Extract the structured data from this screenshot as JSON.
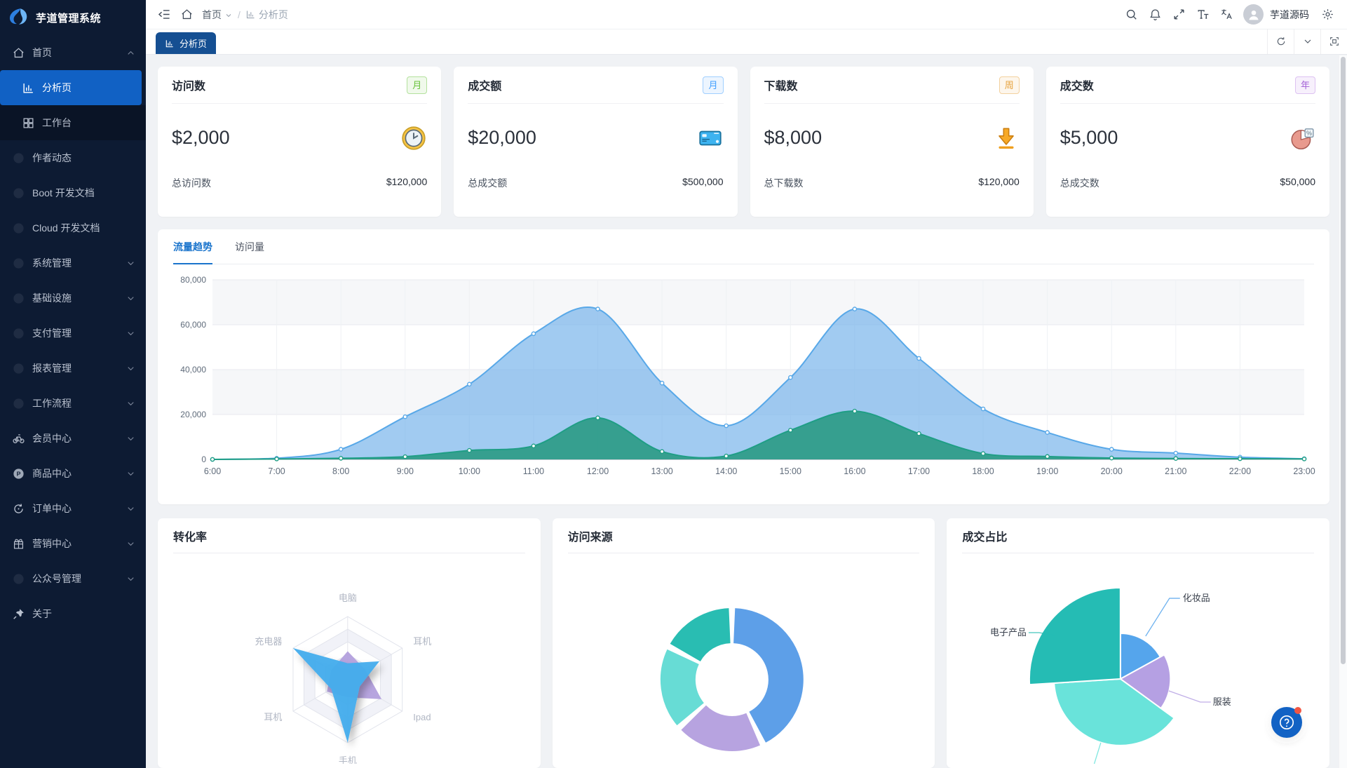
{
  "app": {
    "primary_color": "#1262c4",
    "sidebar_bg": "#0d1b33",
    "active_menu_bg": "#1161c4",
    "tab_bg": "#154f92"
  },
  "sidebar": {
    "logo_title": "芋道管理系统",
    "items": [
      {
        "key": "home",
        "label": "首页",
        "icon": "home",
        "arrow": "up",
        "root": true
      },
      {
        "key": "analysis",
        "label": "分析页",
        "icon": "chart",
        "sub": true,
        "active": true
      },
      {
        "key": "workplace",
        "label": "工作台",
        "icon": "grid",
        "sub": true
      },
      {
        "key": "author",
        "label": "作者动态",
        "icon": "dot"
      },
      {
        "key": "boot-doc",
        "label": "Boot 开发文档",
        "icon": "dot"
      },
      {
        "key": "cloud-doc",
        "label": "Cloud 开发文档",
        "icon": "dot"
      },
      {
        "key": "system",
        "label": "系统管理",
        "icon": "dot",
        "arrow": "down"
      },
      {
        "key": "infra",
        "label": "基础设施",
        "icon": "dot",
        "arrow": "down"
      },
      {
        "key": "pay",
        "label": "支付管理",
        "icon": "dot",
        "arrow": "down"
      },
      {
        "key": "report",
        "label": "报表管理",
        "icon": "dot",
        "arrow": "down"
      },
      {
        "key": "workflow",
        "label": "工作流程",
        "icon": "dot",
        "arrow": "down"
      },
      {
        "key": "member",
        "label": "会员中心",
        "icon": "bike",
        "arrow": "down"
      },
      {
        "key": "product",
        "label": "商品中心",
        "icon": "product",
        "arrow": "down"
      },
      {
        "key": "order",
        "label": "订单中心",
        "icon": "order",
        "arrow": "down"
      },
      {
        "key": "marketing",
        "label": "营销中心",
        "icon": "gift",
        "arrow": "down"
      },
      {
        "key": "mp",
        "label": "公众号管理",
        "icon": "dot",
        "arrow": "down"
      },
      {
        "key": "about",
        "label": "关于",
        "icon": "pin"
      }
    ]
  },
  "header": {
    "breadcrumb": [
      {
        "label": "首页"
      },
      {
        "label": "分析页"
      }
    ],
    "user_name": "芋道源码"
  },
  "tabbar": {
    "active_tab": "分析页"
  },
  "stat_cards": [
    {
      "title": "访问数",
      "badge": "月",
      "badge_color": "green",
      "value": "$2,000",
      "icon": "clock",
      "footer_label": "总访问数",
      "footer_value": "$120,000"
    },
    {
      "title": "成交额",
      "badge": "月",
      "badge_color": "blue",
      "value": "$20,000",
      "icon": "card",
      "footer_label": "总成交额",
      "footer_value": "$500,000"
    },
    {
      "title": "下载数",
      "badge": "周",
      "badge_color": "orange",
      "value": "$8,000",
      "icon": "download",
      "footer_label": "总下载数",
      "footer_value": "$120,000"
    },
    {
      "title": "成交数",
      "badge": "年",
      "badge_color": "purple",
      "value": "$5,000",
      "icon": "pie",
      "footer_label": "总成交数",
      "footer_value": "$50,000"
    }
  ],
  "trend_section": {
    "tabs": [
      "流量趋势",
      "访问量"
    ],
    "active_tab": "流量趋势"
  },
  "bottom_cards": [
    {
      "title": "转化率"
    },
    {
      "title": "访问来源"
    },
    {
      "title": "成交占比"
    }
  ],
  "chart_data": [
    {
      "id": "traffic-trend",
      "type": "area",
      "title": "流量趋势",
      "x": [
        "6:00",
        "7:00",
        "8:00",
        "9:00",
        "10:00",
        "11:00",
        "12:00",
        "13:00",
        "14:00",
        "15:00",
        "16:00",
        "17:00",
        "18:00",
        "19:00",
        "20:00",
        "21:00",
        "22:00",
        "23:00"
      ],
      "ylim": [
        0,
        80000
      ],
      "ytick_labels": [
        "0",
        "20,000",
        "40,000",
        "60,000",
        "80,000"
      ],
      "grid": true,
      "series": [
        {
          "name": "series-blue",
          "color": "#58a8e8",
          "fill": "rgba(113,176,233,0.66)",
          "values": [
            0,
            500,
            4500,
            19000,
            33500,
            56000,
            67000,
            34000,
            15000,
            36500,
            67000,
            45000,
            22500,
            12000,
            4500,
            2800,
            1000,
            300
          ]
        },
        {
          "name": "series-green",
          "color": "#1f9e85",
          "fill": "rgba(35,152,126,0.85)",
          "values": [
            0,
            200,
            500,
            1200,
            4000,
            6000,
            18500,
            3500,
            1500,
            13000,
            21500,
            11500,
            2600,
            1300,
            600,
            400,
            300,
            200
          ]
        }
      ]
    },
    {
      "id": "conversion-radar",
      "type": "radar",
      "title": "转化率",
      "axes": [
        "电脑",
        "耳机",
        "Ipad",
        "手机",
        "耳机",
        "充电器"
      ],
      "max": 100,
      "series": [
        {
          "name": "radar-purple",
          "color": "#b3a0dd",
          "values": [
            45,
            32,
            62,
            28,
            38,
            30
          ]
        },
        {
          "name": "radar-blue",
          "color": "#45aded",
          "values": [
            26,
            58,
            22,
            100,
            30,
            100
          ]
        }
      ]
    },
    {
      "id": "visit-source",
      "type": "donut",
      "title": "访问来源",
      "slices": [
        {
          "name": "slice-blue",
          "value": 42,
          "color": "#5d9fe8"
        },
        {
          "name": "slice-purple",
          "value": 20,
          "color": "#b7a3e0"
        },
        {
          "name": "slice-cyan",
          "value": 19,
          "color": "#67dcd5"
        },
        {
          "name": "slice-teal",
          "value": 17,
          "color": "#29bdb2"
        }
      ]
    },
    {
      "id": "deal-share",
      "type": "rose-pie",
      "title": "成交占比",
      "slices": [
        {
          "label": "化妆品",
          "value": 17,
          "radius_ratio": 0.5,
          "color": "#55a5ec"
        },
        {
          "label": "服装",
          "value": 18,
          "radius_ratio": 0.55,
          "color": "#b5a0e3"
        },
        {
          "label": "",
          "value": 39,
          "radius_ratio": 0.73,
          "color": "#69e3da"
        },
        {
          "label": "电子产品",
          "value": 26,
          "radius_ratio": 1.0,
          "color": "#25bcb4"
        }
      ]
    }
  ]
}
